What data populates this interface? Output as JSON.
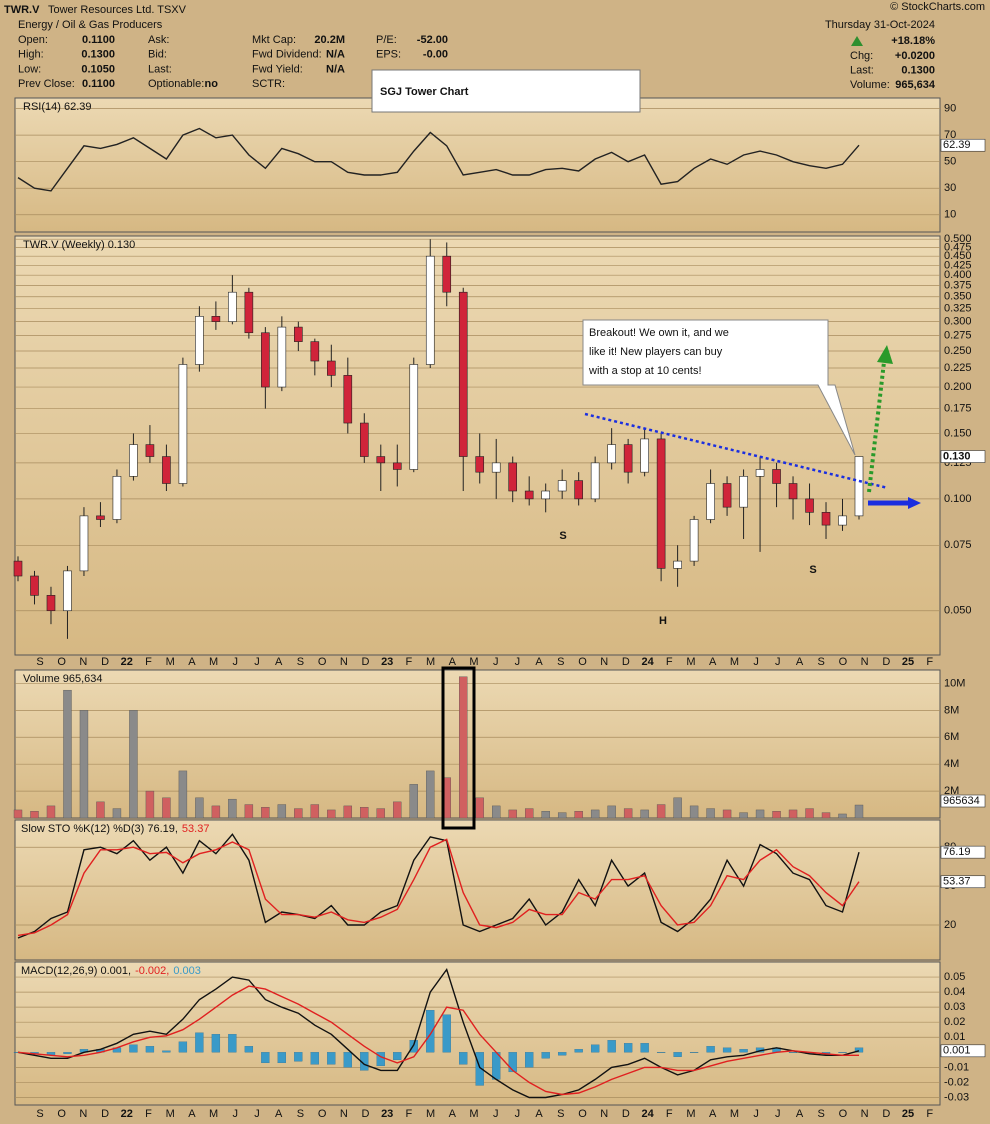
{
  "header": {
    "symbol": "TWR.V",
    "name": "Tower Resources Ltd.  TSXV",
    "sector": "Energy / Oil & Gas Producers",
    "copyright": "© StockCharts.com",
    "date": "Thursday  31-Oct-2024",
    "columns": [
      [
        [
          "Open:",
          "0.1100"
        ],
        [
          "High:",
          "0.1300"
        ],
        [
          "Low:",
          "0.1050"
        ],
        [
          "Prev Close:",
          "0.1100"
        ]
      ],
      [
        [
          "Ask:"
        ],
        [
          "Bid:"
        ],
        [
          "Last:"
        ],
        [
          "Optionable:",
          "no"
        ]
      ],
      [
        [
          "Mkt Cap:",
          "20.2M"
        ],
        [
          "Fwd Dividend:",
          "N/A"
        ],
        [
          "Fwd Yield:",
          "N/A"
        ],
        [
          "SCTR:"
        ]
      ],
      [
        [
          "P/E:",
          "-52.00"
        ],
        [
          "EPS:",
          "-0.00"
        ]
      ]
    ],
    "right": [
      [
        "Chg:",
        "+0.0200"
      ],
      [
        "Last:",
        "0.1300"
      ],
      [
        "Volume:",
        "965,634"
      ]
    ],
    "change": "+18.18%"
  },
  "annotations": {
    "title_box": "SGJ Tower Chart",
    "callout": [
      "Breakout!  We own it, and we",
      "like it!  New players can buy",
      "with a stop at 10 cents!"
    ],
    "pattern": [
      "S",
      "H",
      "S"
    ]
  },
  "x_axis_labels": [
    "S",
    "O",
    "N",
    "D",
    "22",
    "F",
    "M",
    "A",
    "M",
    "J",
    "J",
    "A",
    "S",
    "O",
    "N",
    "D",
    "23",
    "F",
    "M",
    "A",
    "M",
    "J",
    "J",
    "A",
    "S",
    "O",
    "N",
    "D",
    "24",
    "F",
    "M",
    "A",
    "M",
    "J",
    "J",
    "A",
    "S",
    "O",
    "N",
    "D",
    "25",
    "F"
  ],
  "chart_data": [
    {
      "type": "line",
      "title": "RSI(14) 62.39",
      "ylim": [
        -3,
        98
      ],
      "yticks": [
        10,
        30,
        50,
        70,
        90
      ],
      "grid": true,
      "series": [
        {
          "color": "#222222",
          "values": [
            38,
            30,
            28,
            45,
            62,
            60,
            63,
            68,
            60,
            52,
            70,
            75,
            68,
            70,
            55,
            45,
            60,
            56,
            50,
            50,
            42,
            40,
            40,
            42,
            58,
            72,
            62,
            40,
            42,
            44,
            40,
            40,
            44,
            45,
            43,
            52,
            57,
            50,
            55,
            33,
            35,
            45,
            52,
            48,
            55,
            58,
            55,
            50,
            47,
            45,
            48,
            62.39
          ]
        }
      ]
    },
    {
      "type": "candlestick",
      "title": "TWR.V (Weekly) 0.130",
      "last_label": "0.130",
      "log_scale": true,
      "grid": true,
      "ylim": [
        0.038,
        0.51
      ],
      "up_color": "#ffffff",
      "down_color": "#d0243a",
      "yticks": [
        {
          "value": 0.05,
          "label": "0.050"
        },
        {
          "value": 0.075,
          "label": "0.075"
        },
        {
          "value": 0.1,
          "label": "0.100"
        },
        {
          "value": 0.125,
          "label": "0.125"
        },
        {
          "value": 0.15,
          "label": "0.150"
        },
        {
          "value": 0.175,
          "label": "0.175"
        },
        {
          "value": 0.2,
          "label": "0.200"
        },
        {
          "value": 0.225,
          "label": "0.225"
        },
        {
          "value": 0.25,
          "label": "0.250"
        },
        {
          "value": 0.275,
          "label": "0.275"
        },
        {
          "value": 0.3,
          "label": "0.300"
        },
        {
          "value": 0.325,
          "label": "0.325"
        },
        {
          "value": 0.35,
          "label": "0.350"
        },
        {
          "value": 0.375,
          "label": "0.375"
        },
        {
          "value": 0.4,
          "label": "0.400"
        },
        {
          "value": 0.425,
          "label": "0.425"
        },
        {
          "value": 0.45,
          "label": "0.450"
        },
        {
          "value": 0.475,
          "label": "0.475"
        },
        {
          "value": 0.5,
          "label": "0.500"
        }
      ],
      "open": [
        0.068,
        0.062,
        0.055,
        0.05,
        0.064,
        0.09,
        0.088,
        0.115,
        0.14,
        0.13,
        0.11,
        0.23,
        0.31,
        0.3,
        0.36,
        0.28,
        0.2,
        0.29,
        0.265,
        0.235,
        0.215,
        0.16,
        0.13,
        0.125,
        0.12,
        0.23,
        0.45,
        0.36,
        0.13,
        0.118,
        0.125,
        0.105,
        0.1,
        0.105,
        0.112,
        0.1,
        0.125,
        0.14,
        0.118,
        0.145,
        0.065,
        0.068,
        0.088,
        0.11,
        0.095,
        0.115,
        0.12,
        0.11,
        0.1,
        0.092,
        0.085,
        0.09
      ],
      "high": [
        0.07,
        0.064,
        0.058,
        0.066,
        0.095,
        0.098,
        0.12,
        0.15,
        0.158,
        0.14,
        0.24,
        0.33,
        0.34,
        0.4,
        0.37,
        0.29,
        0.31,
        0.3,
        0.27,
        0.26,
        0.24,
        0.17,
        0.14,
        0.14,
        0.24,
        0.5,
        0.49,
        0.37,
        0.15,
        0.145,
        0.13,
        0.115,
        0.11,
        0.12,
        0.118,
        0.13,
        0.155,
        0.145,
        0.155,
        0.15,
        0.075,
        0.09,
        0.12,
        0.115,
        0.12,
        0.13,
        0.125,
        0.115,
        0.11,
        0.098,
        0.1,
        0.13
      ],
      "low": [
        0.06,
        0.052,
        0.046,
        0.042,
        0.062,
        0.084,
        0.086,
        0.112,
        0.125,
        0.105,
        0.108,
        0.22,
        0.285,
        0.295,
        0.27,
        0.175,
        0.195,
        0.25,
        0.215,
        0.2,
        0.15,
        0.125,
        0.105,
        0.108,
        0.118,
        0.225,
        0.33,
        0.105,
        0.11,
        0.1,
        0.098,
        0.096,
        0.092,
        0.1,
        0.096,
        0.098,
        0.12,
        0.11,
        0.115,
        0.06,
        0.058,
        0.066,
        0.086,
        0.09,
        0.078,
        0.072,
        0.095,
        0.088,
        0.085,
        0.078,
        0.082,
        0.088
      ],
      "close": [
        0.062,
        0.055,
        0.05,
        0.064,
        0.09,
        0.088,
        0.115,
        0.14,
        0.13,
        0.11,
        0.23,
        0.31,
        0.3,
        0.36,
        0.28,
        0.2,
        0.29,
        0.265,
        0.235,
        0.215,
        0.16,
        0.13,
        0.125,
        0.12,
        0.23,
        0.45,
        0.36,
        0.13,
        0.118,
        0.125,
        0.105,
        0.1,
        0.105,
        0.112,
        0.1,
        0.125,
        0.14,
        0.118,
        0.145,
        0.065,
        0.068,
        0.088,
        0.11,
        0.095,
        0.115,
        0.12,
        0.11,
        0.1,
        0.092,
        0.085,
        0.09,
        0.13
      ]
    },
    {
      "type": "bar",
      "title": "Volume 965,634",
      "ylim": [
        0,
        11000000
      ],
      "grid": true,
      "up_color": "#8a8a8a",
      "down_color": "#d06060",
      "yticks": [
        {
          "value": 2000000,
          "label": "2M"
        },
        {
          "value": 4000000,
          "label": "4M"
        },
        {
          "value": 6000000,
          "label": "6M"
        },
        {
          "value": 8000000,
          "label": "8M"
        },
        {
          "value": 10000000,
          "label": "10M"
        }
      ],
      "values": [
        600000,
        500000,
        900000,
        9500000,
        8000000,
        1200000,
        700000,
        8000000,
        2000000,
        1500000,
        3500000,
        1500000,
        900000,
        1400000,
        1000000,
        800000,
        1000000,
        700000,
        1000000,
        600000,
        900000,
        800000,
        700000,
        1200000,
        2500000,
        3500000,
        3000000,
        10500000,
        1500000,
        900000,
        600000,
        700000,
        500000,
        400000,
        500000,
        600000,
        900000,
        700000,
        600000,
        1000000,
        1500000,
        900000,
        700000,
        600000,
        400000,
        600000,
        500000,
        600000,
        700000,
        400000,
        300000,
        965634
      ]
    },
    {
      "type": "line",
      "title_parts": [
        "Slow STO %K(12) %D(3) 76.19,",
        "53.37"
      ],
      "ylim": [
        -7,
        101
      ],
      "yticks": [
        20,
        50,
        80
      ],
      "grid": true,
      "series": [
        {
          "color": "#111111",
          "values": [
            10,
            15,
            25,
            30,
            78,
            80,
            75,
            85,
            70,
            80,
            60,
            85,
            75,
            90,
            70,
            22,
            30,
            28,
            25,
            35,
            20,
            20,
            30,
            35,
            70,
            88,
            85,
            20,
            15,
            20,
            25,
            40,
            20,
            30,
            55,
            35,
            70,
            50,
            60,
            22,
            15,
            25,
            40,
            70,
            50,
            82,
            75,
            60,
            55,
            35,
            30,
            76.19
          ]
        },
        {
          "color": "#e02020",
          "values": [
            12,
            14,
            20,
            28,
            60,
            78,
            78,
            80,
            75,
            76,
            68,
            75,
            78,
            84,
            78,
            40,
            28,
            28,
            26,
            30,
            24,
            22,
            26,
            32,
            55,
            80,
            86,
            45,
            20,
            18,
            22,
            32,
            28,
            28,
            45,
            40,
            55,
            55,
            58,
            35,
            20,
            22,
            35,
            58,
            55,
            70,
            78,
            65,
            58,
            45,
            35,
            53.37
          ]
        }
      ]
    },
    {
      "type": "macd",
      "title_parts": [
        "MACD(12,26,9) 0.001,",
        "-0.002,",
        "0.003"
      ],
      "ylim": [
        -0.035,
        0.06
      ],
      "yticks": [
        -0.03,
        -0.02,
        -0.01,
        0.01,
        0.02,
        0.03,
        0.04,
        0.05
      ],
      "grid": true,
      "series": [
        {
          "color": "#111111",
          "values": [
            0,
            -0.002,
            -0.004,
            -0.004,
            0,
            0.002,
            0.006,
            0.012,
            0.014,
            0.012,
            0.022,
            0.035,
            0.042,
            0.05,
            0.048,
            0.035,
            0.03,
            0.026,
            0.018,
            0.012,
            0.002,
            -0.008,
            -0.012,
            -0.012,
            0.005,
            0.04,
            0.055,
            0.02,
            -0.01,
            -0.018,
            -0.025,
            -0.03,
            -0.03,
            -0.028,
            -0.025,
            -0.018,
            -0.01,
            -0.008,
            -0.004,
            -0.01,
            -0.015,
            -0.012,
            -0.005,
            -0.003,
            -0.002,
            0.001,
            0.003,
            0.001,
            -0.001,
            -0.002,
            -0.002,
            0.001
          ]
        },
        {
          "color": "#e02020",
          "values": [
            0,
            -0.001,
            -0.002,
            -0.003,
            -0.002,
            0,
            0.003,
            0.007,
            0.01,
            0.011,
            0.015,
            0.022,
            0.03,
            0.038,
            0.044,
            0.042,
            0.037,
            0.032,
            0.026,
            0.02,
            0.012,
            0.004,
            -0.003,
            -0.007,
            -0.003,
            0.012,
            0.03,
            0.028,
            0.012,
            0,
            -0.012,
            -0.02,
            -0.026,
            -0.028,
            -0.027,
            -0.023,
            -0.018,
            -0.014,
            -0.01,
            -0.01,
            -0.012,
            -0.012,
            -0.009,
            -0.006,
            -0.004,
            -0.002,
            0,
            0.001,
            0,
            -0.001,
            -0.002,
            -0.002
          ]
        },
        {
          "color": "#3a9ac8",
          "kind": "histogram",
          "values": [
            0,
            -0.001,
            -0.002,
            -0.001,
            0.002,
            0.002,
            0.003,
            0.005,
            0.004,
            0.001,
            0.007,
            0.013,
            0.012,
            0.012,
            0.004,
            -0.007,
            -0.007,
            -0.006,
            -0.008,
            -0.008,
            -0.01,
            -0.012,
            -0.009,
            -0.005,
            0.008,
            0.028,
            0.025,
            -0.008,
            -0.022,
            -0.018,
            -0.013,
            -0.01,
            -0.004,
            -0.002,
            0.002,
            0.005,
            0.008,
            0.006,
            0.006,
            0,
            -0.003,
            0,
            0.004,
            0.003,
            0.002,
            0.003,
            0.003,
            0,
            -0.001,
            -0.001,
            0,
            0.003
          ]
        }
      ]
    }
  ]
}
